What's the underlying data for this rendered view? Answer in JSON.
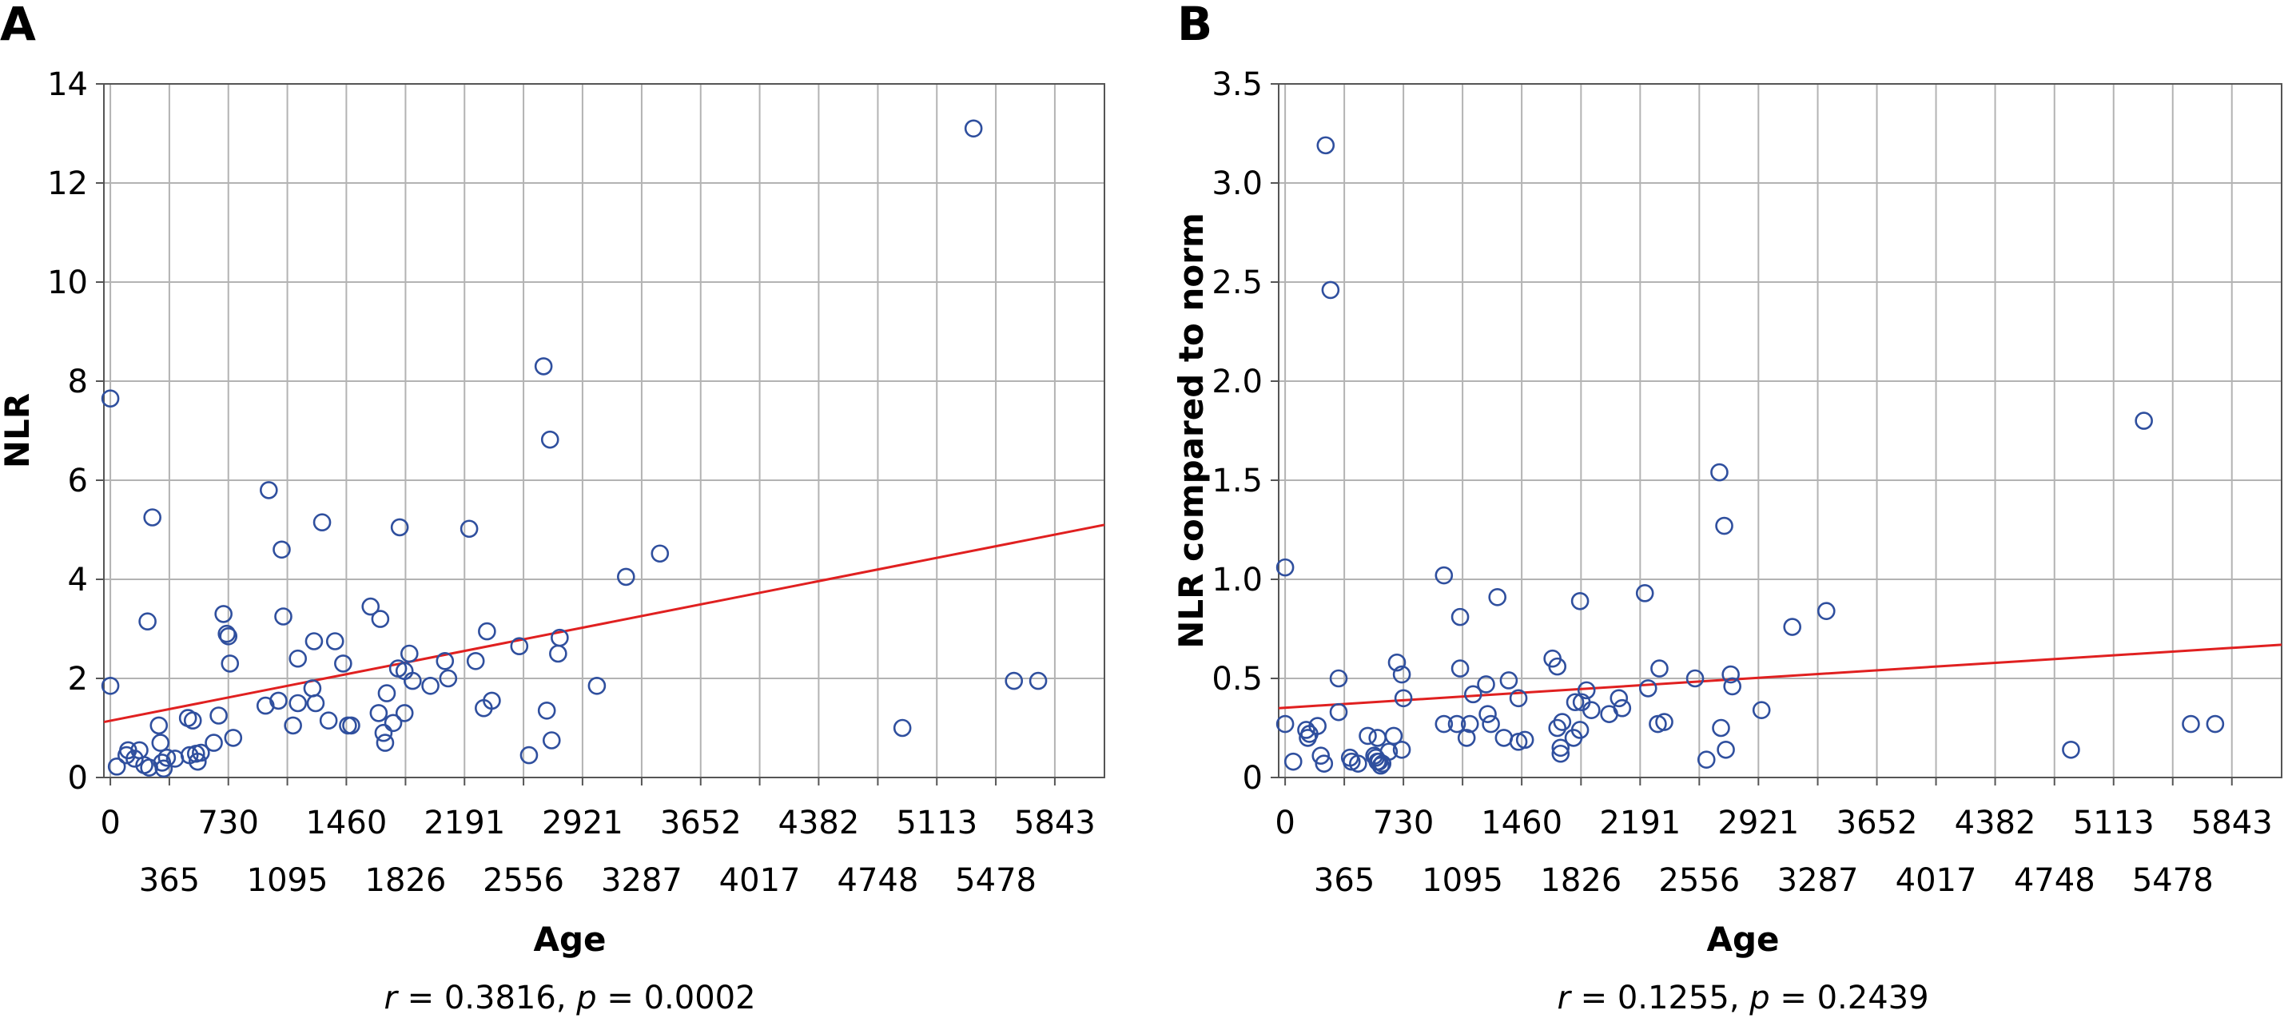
{
  "colors": {
    "point": "#2f4f9e",
    "fit_line": "#e02020",
    "grid": "#b3b3b3",
    "axis": "#555555"
  },
  "chart_data": [
    {
      "type": "scatter",
      "panel_label": "A",
      "xlabel": "Age",
      "ylabel": "NLR",
      "xlim": [
        -40,
        6150
      ],
      "ylim": [
        0,
        14
      ],
      "grid": true,
      "x_ticks_top": [
        "0",
        "730",
        "1460",
        "2191",
        "2921",
        "3652",
        "4382",
        "5113",
        "5843"
      ],
      "x_ticks_bottom": [
        "365",
        "1095",
        "1826",
        "2556",
        "3287",
        "4017",
        "4748",
        "5478"
      ],
      "y_ticks": [
        "0",
        "2",
        "4",
        "6",
        "8",
        "10",
        "12",
        "14"
      ],
      "fit_line": {
        "x": [
          -40,
          6150
        ],
        "y": [
          1.12,
          5.1
        ]
      },
      "stats": {
        "r_label": "r",
        "r_value": " = 0.3816, ",
        "p_label": "p",
        "p_value": " = 0.0002"
      },
      "points": [
        [
          0,
          7.65
        ],
        [
          0,
          1.85
        ],
        [
          40,
          0.22
        ],
        [
          100,
          0.45
        ],
        [
          110,
          0.55
        ],
        [
          150,
          0.38
        ],
        [
          180,
          0.55
        ],
        [
          210,
          0.25
        ],
        [
          230,
          3.15
        ],
        [
          240,
          0.2
        ],
        [
          260,
          5.25
        ],
        [
          300,
          1.05
        ],
        [
          310,
          0.7
        ],
        [
          320,
          0.3
        ],
        [
          330,
          0.18
        ],
        [
          350,
          0.4
        ],
        [
          400,
          0.38
        ],
        [
          480,
          1.2
        ],
        [
          490,
          0.45
        ],
        [
          510,
          1.15
        ],
        [
          530,
          0.48
        ],
        [
          540,
          0.32
        ],
        [
          560,
          0.5
        ],
        [
          640,
          0.7
        ],
        [
          670,
          1.25
        ],
        [
          700,
          3.3
        ],
        [
          720,
          2.9
        ],
        [
          730,
          2.85
        ],
        [
          740,
          2.3
        ],
        [
          760,
          0.8
        ],
        [
          960,
          1.45
        ],
        [
          980,
          5.8
        ],
        [
          1040,
          1.55
        ],
        [
          1060,
          4.6
        ],
        [
          1070,
          3.25
        ],
        [
          1130,
          1.05
        ],
        [
          1160,
          2.4
        ],
        [
          1160,
          1.5
        ],
        [
          1250,
          1.8
        ],
        [
          1260,
          2.75
        ],
        [
          1270,
          1.5
        ],
        [
          1310,
          5.15
        ],
        [
          1350,
          1.15
        ],
        [
          1390,
          2.75
        ],
        [
          1440,
          2.3
        ],
        [
          1470,
          1.05
        ],
        [
          1490,
          1.05
        ],
        [
          1610,
          3.45
        ],
        [
          1660,
          1.3
        ],
        [
          1670,
          3.2
        ],
        [
          1690,
          0.9
        ],
        [
          1700,
          0.7
        ],
        [
          1710,
          1.7
        ],
        [
          1750,
          1.1
        ],
        [
          1780,
          2.2
        ],
        [
          1790,
          5.05
        ],
        [
          1820,
          1.3
        ],
        [
          1820,
          2.15
        ],
        [
          1850,
          2.5
        ],
        [
          1870,
          1.95
        ],
        [
          1980,
          1.85
        ],
        [
          2070,
          2.35
        ],
        [
          2090,
          2.0
        ],
        [
          2220,
          5.02
        ],
        [
          2260,
          2.35
        ],
        [
          2310,
          1.4
        ],
        [
          2330,
          2.95
        ],
        [
          2360,
          1.55
        ],
        [
          2530,
          2.65
        ],
        [
          2590,
          0.45
        ],
        [
          2680,
          8.3
        ],
        [
          2700,
          1.35
        ],
        [
          2720,
          6.82
        ],
        [
          2730,
          0.75
        ],
        [
          2770,
          2.5
        ],
        [
          2780,
          2.82
        ],
        [
          3010,
          1.85
        ],
        [
          3190,
          4.05
        ],
        [
          3400,
          4.52
        ],
        [
          4900,
          1.0
        ],
        [
          5340,
          13.1
        ],
        [
          5590,
          1.95
        ],
        [
          5740,
          1.95
        ]
      ]
    },
    {
      "type": "scatter",
      "panel_label": "B",
      "xlabel": "Age",
      "ylabel": "NLR compared to norm",
      "xlim": [
        -40,
        6150
      ],
      "ylim": [
        0,
        3.5
      ],
      "grid": true,
      "x_ticks_top": [
        "0",
        "730",
        "1460",
        "2191",
        "2921",
        "3652",
        "4382",
        "5113",
        "5843"
      ],
      "x_ticks_bottom": [
        "365",
        "1095",
        "1826",
        "2556",
        "3287",
        "4017",
        "4748",
        "5478"
      ],
      "y_ticks": [
        "0",
        "0.5",
        "1.0",
        "1.5",
        "2.0",
        "2.5",
        "3.0",
        "3.5"
      ],
      "fit_line": {
        "x": [
          -40,
          6150
        ],
        "y": [
          0.35,
          0.67
        ]
      },
      "stats": {
        "r_label": "r",
        "r_value": " = 0.1255, ",
        "p_label": "p",
        "p_value": " = 0.2439"
      },
      "points": [
        [
          0,
          1.06
        ],
        [
          0,
          0.27
        ],
        [
          50,
          0.08
        ],
        [
          130,
          0.24
        ],
        [
          140,
          0.2
        ],
        [
          150,
          0.22
        ],
        [
          200,
          0.26
        ],
        [
          220,
          0.11
        ],
        [
          240,
          0.07
        ],
        [
          250,
          3.19
        ],
        [
          280,
          2.46
        ],
        [
          330,
          0.5
        ],
        [
          330,
          0.33
        ],
        [
          400,
          0.1
        ],
        [
          410,
          0.08
        ],
        [
          450,
          0.07
        ],
        [
          510,
          0.21
        ],
        [
          550,
          0.11
        ],
        [
          560,
          0.1
        ],
        [
          570,
          0.08
        ],
        [
          580,
          0.08
        ],
        [
          590,
          0.06
        ],
        [
          600,
          0.07
        ],
        [
          570,
          0.2
        ],
        [
          640,
          0.13
        ],
        [
          670,
          0.21
        ],
        [
          690,
          0.58
        ],
        [
          720,
          0.52
        ],
        [
          730,
          0.4
        ],
        [
          720,
          0.14
        ],
        [
          980,
          0.27
        ],
        [
          980,
          1.02
        ],
        [
          1060,
          0.27
        ],
        [
          1080,
          0.81
        ],
        [
          1080,
          0.55
        ],
        [
          1120,
          0.2
        ],
        [
          1140,
          0.27
        ],
        [
          1160,
          0.42
        ],
        [
          1240,
          0.47
        ],
        [
          1250,
          0.32
        ],
        [
          1270,
          0.27
        ],
        [
          1310,
          0.91
        ],
        [
          1350,
          0.2
        ],
        [
          1380,
          0.49
        ],
        [
          1440,
          0.18
        ],
        [
          1440,
          0.4
        ],
        [
          1480,
          0.19
        ],
        [
          1650,
          0.6
        ],
        [
          1680,
          0.56
        ],
        [
          1680,
          0.25
        ],
        [
          1700,
          0.15
        ],
        [
          1700,
          0.12
        ],
        [
          1710,
          0.28
        ],
        [
          1780,
          0.2
        ],
        [
          1790,
          0.38
        ],
        [
          1820,
          0.24
        ],
        [
          1820,
          0.89
        ],
        [
          1830,
          0.38
        ],
        [
          1860,
          0.44
        ],
        [
          1890,
          0.34
        ],
        [
          2000,
          0.32
        ],
        [
          2060,
          0.4
        ],
        [
          2080,
          0.35
        ],
        [
          2220,
          0.93
        ],
        [
          2240,
          0.45
        ],
        [
          2300,
          0.27
        ],
        [
          2310,
          0.55
        ],
        [
          2340,
          0.28
        ],
        [
          2530,
          0.5
        ],
        [
          2600,
          0.09
        ],
        [
          2680,
          1.54
        ],
        [
          2690,
          0.25
        ],
        [
          2710,
          1.27
        ],
        [
          2720,
          0.14
        ],
        [
          2750,
          0.52
        ],
        [
          2760,
          0.46
        ],
        [
          2940,
          0.34
        ],
        [
          3130,
          0.76
        ],
        [
          3340,
          0.84
        ],
        [
          4850,
          0.14
        ],
        [
          5300,
          1.8
        ],
        [
          5590,
          0.27
        ],
        [
          5740,
          0.27
        ]
      ]
    }
  ]
}
